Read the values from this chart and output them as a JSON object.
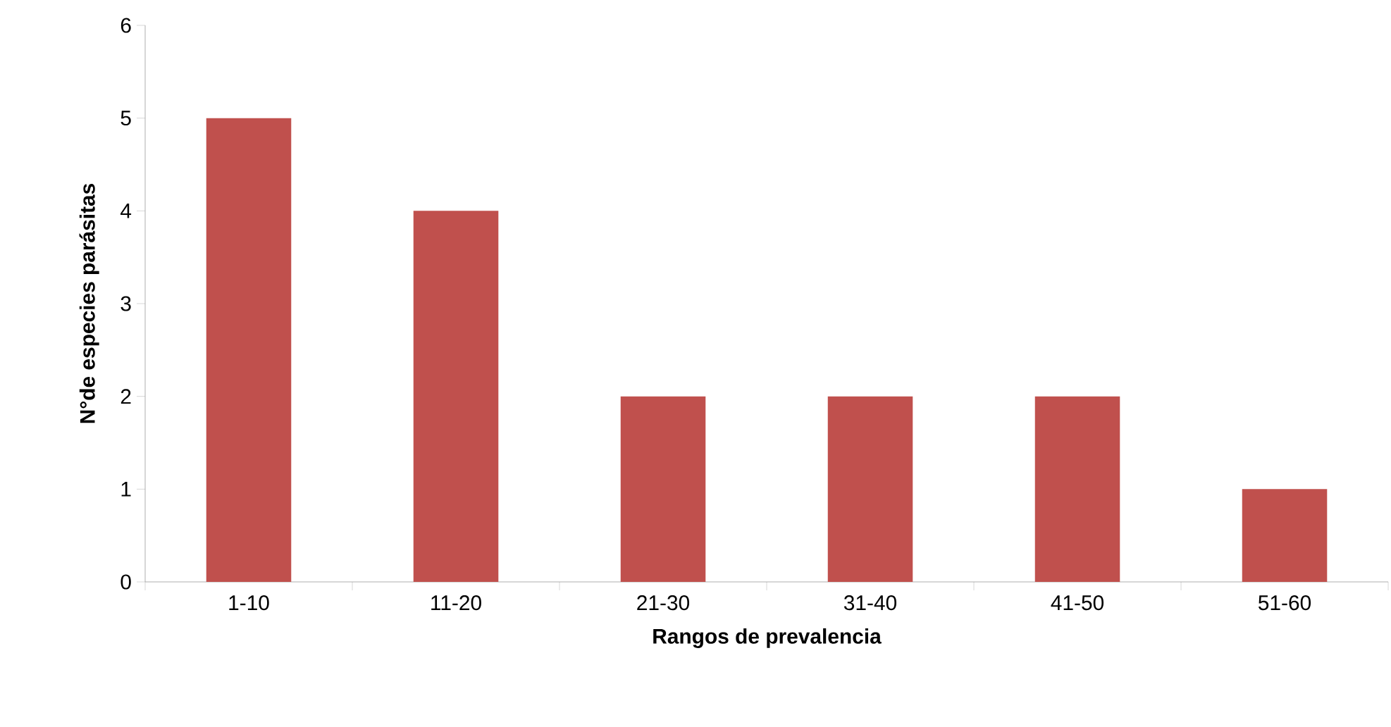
{
  "chart_data": {
    "type": "bar",
    "xlabel": "Rangos de prevalencia",
    "ylabel": "N°de especies parásitas",
    "categories": [
      "1-10",
      "11-20",
      "21-30",
      "31-40",
      "41-50",
      "51-60"
    ],
    "values": [
      5,
      4,
      2,
      2,
      2,
      1
    ],
    "color": "#c0504d",
    "ylim": [
      0,
      6
    ],
    "yticks": [
      0,
      1,
      2,
      3,
      4,
      5,
      6
    ]
  }
}
